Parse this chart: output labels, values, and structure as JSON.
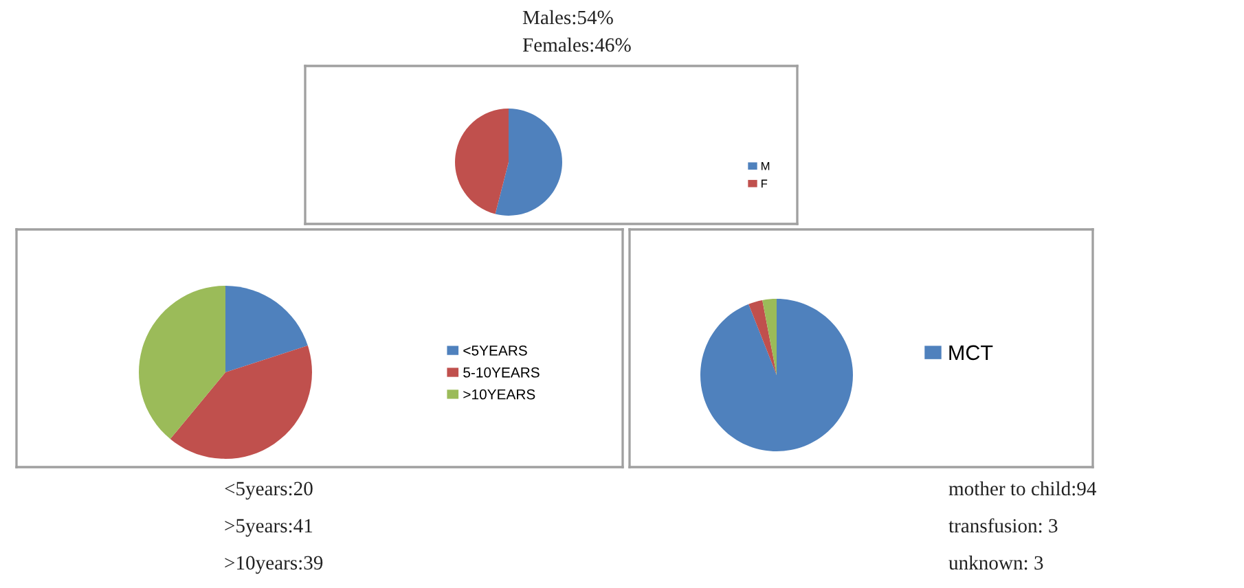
{
  "chart_data": [
    {
      "type": "pie",
      "categories": [
        "M",
        "F"
      ],
      "values": [
        54,
        46
      ],
      "colors": [
        "#4f81bd",
        "#c0504d"
      ],
      "legend": "right",
      "annotations": [
        "Males:54%",
        "Females:46%"
      ]
    },
    {
      "type": "pie",
      "categories": [
        "<5YEARS",
        "5-10YEARS",
        ">10YEARS"
      ],
      "values": [
        20,
        41,
        39
      ],
      "colors": [
        "#4f81bd",
        "#c0504d",
        "#9bbb59"
      ],
      "legend": "right",
      "annotations": [
        "<5years:20",
        ">5years:41",
        ">10years:39"
      ]
    },
    {
      "type": "pie",
      "categories": [
        "MCT",
        null,
        null
      ],
      "values": [
        94,
        3,
        3
      ],
      "colors": [
        "#4f81bd",
        "#c0504d",
        "#9bbb59"
      ],
      "legend": "right",
      "annotations": [
        "mother to child:94",
        "transfusion: 3",
        "unknown: 3"
      ]
    }
  ]
}
